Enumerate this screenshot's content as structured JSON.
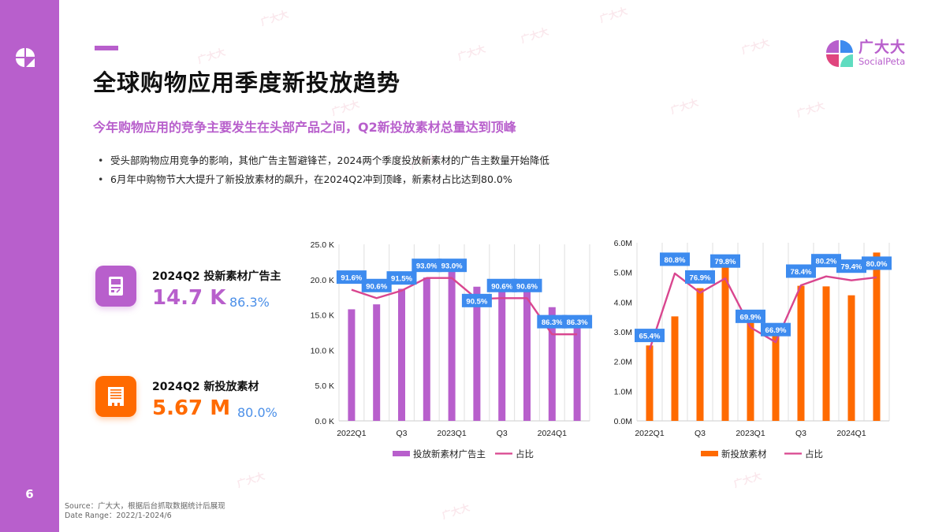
{
  "sidebar": {
    "page_number": "6"
  },
  "header": {
    "title": "全球购物应用季度新投放趋势",
    "subtitle": "今年购物应用的竞争主要发生在头部产品之间，Q2新投放素材总量达到顶峰"
  },
  "brand": {
    "name_cn": "广大大",
    "name_en": "SocialPeta"
  },
  "bullets": [
    "受头部购物应用竞争的影响，其他广告主暂避锋芒，2024两个季度投放新素材的广告主数量开始降低",
    "6月年中购物节大大提升了新投放素材的飙升，在2024Q2冲到顶峰，新素材占比达到80.0%"
  ],
  "kpis": [
    {
      "label": "2024Q2 投新素材广告主",
      "value": "14.7 K",
      "pct": "86.3%",
      "color": "#b85fcc",
      "icon": "document-icon"
    },
    {
      "label": "2024Q2 新投放素材",
      "value": "5.67 M",
      "pct": "80.0%",
      "color": "#ff6a00",
      "icon": "creative-list-icon"
    }
  ],
  "footer": {
    "source": "Source：广大大，根据后台抓取数据统计后展现",
    "date_range": "Date Range：2022/1-2024/6"
  },
  "watermark": "广大大",
  "colors": {
    "purple": "#b85fcc",
    "orange": "#ff6a00",
    "line": "#d9468f",
    "label_bg": "#3d8bef",
    "grid": "#e6e6e6"
  },
  "chart_data": [
    {
      "type": "bar",
      "title": "投放新素材广告主",
      "categories": [
        "2022Q1",
        "2022Q2",
        "2022Q3",
        "2022Q4",
        "2023Q1",
        "2023Q2",
        "2023Q3",
        "2023Q4",
        "2024Q1",
        "2024Q2"
      ],
      "x_tick_labels": [
        "2022Q1",
        "",
        "Q3",
        "",
        "2023Q1",
        "",
        "Q3",
        "",
        "2024Q1",
        ""
      ],
      "y_ticks": [
        "0.0 K",
        "5.0 K",
        "10.0 K",
        "15.0 K",
        "20.0 K",
        "25.0 K"
      ],
      "ylim": [
        0,
        25
      ],
      "yunit": "K",
      "series": [
        {
          "name": "投放新素材广告主",
          "type": "bar",
          "color": "#b85fcc",
          "values": [
            15.8,
            16.5,
            18.7,
            20.3,
            21.2,
            19.0,
            19.0,
            19.0,
            16.1,
            14.7
          ]
        },
        {
          "name": "占比",
          "type": "line",
          "color": "#d9468f",
          "values": [
            91.6,
            90.6,
            91.5,
            93.0,
            93.0,
            90.5,
            90.6,
            90.6,
            86.3,
            86.3
          ],
          "labels": [
            "91.6%",
            "90.6%",
            "91.5%",
            "93.0%",
            "93.0%",
            "90.5%",
            "90.6%",
            "90.6%",
            "86.3%",
            "86.3%"
          ]
        }
      ],
      "legend": [
        "投放新素材广告主",
        "占比"
      ],
      "legend_position": "bottom",
      "grid": "vertical"
    },
    {
      "type": "bar",
      "title": "新投放素材",
      "categories": [
        "2022Q1",
        "2022Q2",
        "2022Q3",
        "2022Q4",
        "2023Q1",
        "2023Q2",
        "2023Q3",
        "2023Q4",
        "2024Q1",
        "2024Q2"
      ],
      "x_tick_labels": [
        "2022Q1",
        "",
        "Q3",
        "",
        "2023Q1",
        "",
        "Q3",
        "",
        "2024Q1",
        ""
      ],
      "y_ticks": [
        "0.0M",
        "1.0M",
        "2.0M",
        "3.0M",
        "4.0M",
        "5.0M",
        "6.0M"
      ],
      "ylim": [
        0,
        6
      ],
      "yunit": "M",
      "series": [
        {
          "name": "新投放素材",
          "type": "bar",
          "color": "#ff6a00",
          "values": [
            2.54,
            3.52,
            4.47,
            5.3,
            3.6,
            2.93,
            4.55,
            4.53,
            4.23,
            5.67
          ]
        },
        {
          "name": "占比",
          "type": "line",
          "color": "#d9468f",
          "values": [
            65.4,
            80.8,
            76.9,
            79.8,
            69.9,
            66.9,
            78.4,
            80.2,
            79.4,
            80.0
          ],
          "labels": [
            "65.4%",
            "80.8%",
            "76.9%",
            "79.8%",
            "69.9%",
            "66.9%",
            "78.4%",
            "80.2%",
            "79.4%",
            "80.0%"
          ]
        }
      ],
      "legend": [
        "新投放素材",
        "占比"
      ],
      "legend_position": "bottom",
      "grid": "vertical"
    }
  ]
}
